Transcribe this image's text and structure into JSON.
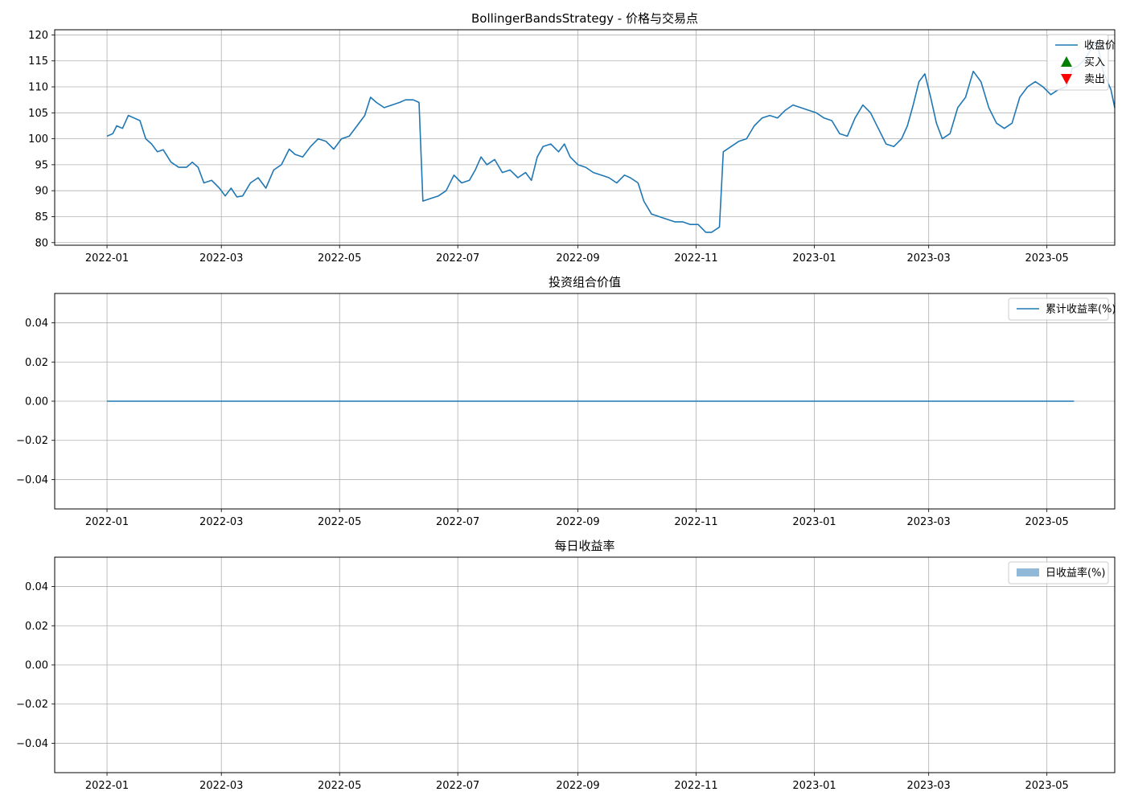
{
  "chart_data": [
    {
      "type": "line",
      "title": "BollingerBandsStrategy - 价格与交易点",
      "xlabel": "",
      "ylabel": "",
      "x_axis": "date",
      "xlim": [
        "2021-12-05",
        "2023-06-05"
      ],
      "x_ticks": [
        "2022-01",
        "2022-03",
        "2022-05",
        "2022-07",
        "2022-09",
        "2022-11",
        "2023-01",
        "2023-03",
        "2023-05"
      ],
      "ylim": [
        79.5,
        121
      ],
      "y_ticks": [
        80,
        85,
        90,
        95,
        100,
        105,
        110,
        115,
        120
      ],
      "y_tick_labels": [
        "80",
        "85",
        "90",
        "95",
        "100",
        "105",
        "110",
        "115",
        "120"
      ],
      "grid": true,
      "legend_position": "top-right",
      "legend": [
        {
          "label": "收盘价",
          "marker": "line",
          "color": "#1f77b4"
        },
        {
          "label": "买入",
          "marker": "triangle-up",
          "color": "#008000"
        },
        {
          "label": "卖出",
          "marker": "triangle-down",
          "color": "#ff0000"
        }
      ],
      "series": [
        {
          "name": "收盘价",
          "color": "#1f77b4",
          "points": [
            [
              "2022-01-01",
              100.5
            ],
            [
              "2022-01-04",
              101.0
            ],
            [
              "2022-01-06",
              102.5
            ],
            [
              "2022-01-09",
              102.0
            ],
            [
              "2022-01-12",
              104.5
            ],
            [
              "2022-01-15",
              104.0
            ],
            [
              "2022-01-18",
              103.5
            ],
            [
              "2022-01-21",
              100.0
            ],
            [
              "2022-01-24",
              99.0
            ],
            [
              "2022-01-27",
              97.5
            ],
            [
              "2022-01-30",
              97.9
            ],
            [
              "2022-02-03",
              95.5
            ],
            [
              "2022-02-07",
              94.5
            ],
            [
              "2022-02-11",
              94.5
            ],
            [
              "2022-02-14",
              95.5
            ],
            [
              "2022-02-17",
              94.5
            ],
            [
              "2022-02-20",
              91.5
            ],
            [
              "2022-02-24",
              92.0
            ],
            [
              "2022-02-28",
              90.5
            ],
            [
              "2022-03-03",
              89.0
            ],
            [
              "2022-03-06",
              90.5
            ],
            [
              "2022-03-09",
              88.8
            ],
            [
              "2022-03-12",
              89.0
            ],
            [
              "2022-03-16",
              91.5
            ],
            [
              "2022-03-20",
              92.5
            ],
            [
              "2022-03-24",
              90.5
            ],
            [
              "2022-03-28",
              94.0
            ],
            [
              "2022-04-01",
              95.0
            ],
            [
              "2022-04-05",
              98.0
            ],
            [
              "2022-04-08",
              97.0
            ],
            [
              "2022-04-12",
              96.5
            ],
            [
              "2022-04-16",
              98.5
            ],
            [
              "2022-04-20",
              100.0
            ],
            [
              "2022-04-24",
              99.5
            ],
            [
              "2022-04-28",
              98.0
            ],
            [
              "2022-05-02",
              100.0
            ],
            [
              "2022-05-06",
              100.5
            ],
            [
              "2022-05-10",
              102.5
            ],
            [
              "2022-05-14",
              104.5
            ],
            [
              "2022-05-17",
              108.0
            ],
            [
              "2022-05-20",
              107.0
            ],
            [
              "2022-05-24",
              106.0
            ],
            [
              "2022-05-28",
              106.5
            ],
            [
              "2022-06-01",
              107.0
            ],
            [
              "2022-06-04",
              107.5
            ],
            [
              "2022-06-08",
              107.5
            ],
            [
              "2022-06-11",
              107.0
            ],
            [
              "2022-06-13",
              88.0
            ],
            [
              "2022-06-17",
              88.5
            ],
            [
              "2022-06-21",
              89.0
            ],
            [
              "2022-06-25",
              90.0
            ],
            [
              "2022-06-29",
              93.0
            ],
            [
              "2022-07-03",
              91.5
            ],
            [
              "2022-07-07",
              92.0
            ],
            [
              "2022-07-10",
              94.0
            ],
            [
              "2022-07-13",
              96.5
            ],
            [
              "2022-07-16",
              95.0
            ],
            [
              "2022-07-20",
              96.0
            ],
            [
              "2022-07-24",
              93.5
            ],
            [
              "2022-07-28",
              94.0
            ],
            [
              "2022-08-01",
              92.5
            ],
            [
              "2022-08-05",
              93.5
            ],
            [
              "2022-08-08",
              92.0
            ],
            [
              "2022-08-11",
              96.5
            ],
            [
              "2022-08-14",
              98.5
            ],
            [
              "2022-08-18",
              99.0
            ],
            [
              "2022-08-22",
              97.5
            ],
            [
              "2022-08-25",
              99.0
            ],
            [
              "2022-08-28",
              96.5
            ],
            [
              "2022-09-01",
              95.0
            ],
            [
              "2022-09-05",
              94.5
            ],
            [
              "2022-09-09",
              93.5
            ],
            [
              "2022-09-13",
              93.0
            ],
            [
              "2022-09-17",
              92.5
            ],
            [
              "2022-09-21",
              91.5
            ],
            [
              "2022-09-25",
              93.0
            ],
            [
              "2022-09-28",
              92.5
            ],
            [
              "2022-10-02",
              91.5
            ],
            [
              "2022-10-05",
              88.0
            ],
            [
              "2022-10-09",
              85.5
            ],
            [
              "2022-10-13",
              85.0
            ],
            [
              "2022-10-17",
              84.5
            ],
            [
              "2022-10-21",
              84.0
            ],
            [
              "2022-10-25",
              84.0
            ],
            [
              "2022-10-29",
              83.5
            ],
            [
              "2022-11-02",
              83.5
            ],
            [
              "2022-11-06",
              82.0
            ],
            [
              "2022-11-09",
              82.0
            ],
            [
              "2022-11-13",
              83.0
            ],
            [
              "2022-11-15",
              97.5
            ],
            [
              "2022-11-19",
              98.5
            ],
            [
              "2022-11-23",
              99.5
            ],
            [
              "2022-11-27",
              100.0
            ],
            [
              "2022-12-01",
              102.5
            ],
            [
              "2022-12-05",
              104.0
            ],
            [
              "2022-12-09",
              104.5
            ],
            [
              "2022-12-13",
              104.0
            ],
            [
              "2022-12-17",
              105.5
            ],
            [
              "2022-12-21",
              106.5
            ],
            [
              "2022-12-25",
              106.0
            ],
            [
              "2022-12-29",
              105.5
            ],
            [
              "2023-01-02",
              105.0
            ],
            [
              "2023-01-06",
              104.0
            ],
            [
              "2023-01-10",
              103.5
            ],
            [
              "2023-01-14",
              101.0
            ],
            [
              "2023-01-18",
              100.5
            ],
            [
              "2023-01-22",
              104.0
            ],
            [
              "2023-01-26",
              106.5
            ],
            [
              "2023-01-30",
              105.0
            ],
            [
              "2023-02-03",
              102.0
            ],
            [
              "2023-02-07",
              99.0
            ],
            [
              "2023-02-11",
              98.5
            ],
            [
              "2023-02-15",
              100.0
            ],
            [
              "2023-02-18",
              102.5
            ],
            [
              "2023-02-21",
              106.5
            ],
            [
              "2023-02-24",
              111.0
            ],
            [
              "2023-02-27",
              112.5
            ],
            [
              "2023-03-02",
              108.0
            ],
            [
              "2023-03-05",
              103.0
            ],
            [
              "2023-03-08",
              100.0
            ],
            [
              "2023-03-12",
              101.0
            ],
            [
              "2023-03-16",
              106.0
            ],
            [
              "2023-03-20",
              108.0
            ],
            [
              "2023-03-24",
              113.0
            ],
            [
              "2023-03-28",
              111.0
            ],
            [
              "2023-04-01",
              106.0
            ],
            [
              "2023-04-05",
              103.0
            ],
            [
              "2023-04-09",
              102.0
            ],
            [
              "2023-04-13",
              103.0
            ],
            [
              "2023-04-17",
              108.0
            ],
            [
              "2023-04-21",
              110.0
            ],
            [
              "2023-04-25",
              111.0
            ],
            [
              "2023-04-29",
              110.0
            ],
            [
              "2023-05-03",
              108.5
            ],
            [
              "2023-05-07",
              109.5
            ],
            [
              "2023-05-11",
              110.0
            ],
            [
              "2023-05-14",
              113.5
            ],
            [
              "2023-05-17",
              114.0
            ],
            [
              "2023-05-21",
              115.5
            ],
            [
              "2023-05-25",
              118.0
            ],
            [
              "2023-05-27",
              118.5
            ],
            [
              "2023-05-30",
              113.0
            ],
            [
              "2023-06-03",
              109.5
            ],
            [
              "2023-06-05",
              106.0
            ]
          ]
        }
      ]
    },
    {
      "type": "line",
      "title": "投资组合价值",
      "xlabel": "",
      "ylabel": "",
      "x_axis": "date",
      "xlim": [
        "2021-12-05",
        "2023-06-05"
      ],
      "x_ticks": [
        "2022-01",
        "2022-03",
        "2022-05",
        "2022-07",
        "2022-09",
        "2022-11",
        "2023-01",
        "2023-03",
        "2023-05"
      ],
      "ylim": [
        -0.055,
        0.055
      ],
      "y_ticks": [
        -0.04,
        -0.02,
        0.0,
        0.02,
        0.04
      ],
      "y_tick_labels": [
        "−0.04",
        "−0.02",
        "0.00",
        "0.02",
        "0.04"
      ],
      "grid": true,
      "legend_position": "top-right",
      "legend": [
        {
          "label": "累计收益率(%)",
          "marker": "line",
          "color": "#1f77b4"
        }
      ],
      "series": [
        {
          "name": "累计收益率(%)",
          "color": "#1f77b4",
          "points": [
            [
              "2022-01-01",
              0.0
            ],
            [
              "2023-05-15",
              0.0
            ]
          ]
        }
      ]
    },
    {
      "type": "bar",
      "title": "每日收益率",
      "xlabel": "",
      "ylabel": "",
      "x_axis": "date",
      "xlim": [
        "2021-12-05",
        "2023-06-05"
      ],
      "x_ticks": [
        "2022-01",
        "2022-03",
        "2022-05",
        "2022-07",
        "2022-09",
        "2022-11",
        "2023-01",
        "2023-03",
        "2023-05"
      ],
      "ylim": [
        -0.055,
        0.055
      ],
      "y_ticks": [
        -0.04,
        -0.02,
        0.0,
        0.02,
        0.04
      ],
      "y_tick_labels": [
        "−0.04",
        "−0.02",
        "0.00",
        "0.02",
        "0.04"
      ],
      "grid": true,
      "legend_position": "top-right",
      "legend": [
        {
          "label": "日收益率(%)",
          "marker": "patch",
          "color": "#8fb8d9"
        }
      ],
      "series": []
    }
  ]
}
